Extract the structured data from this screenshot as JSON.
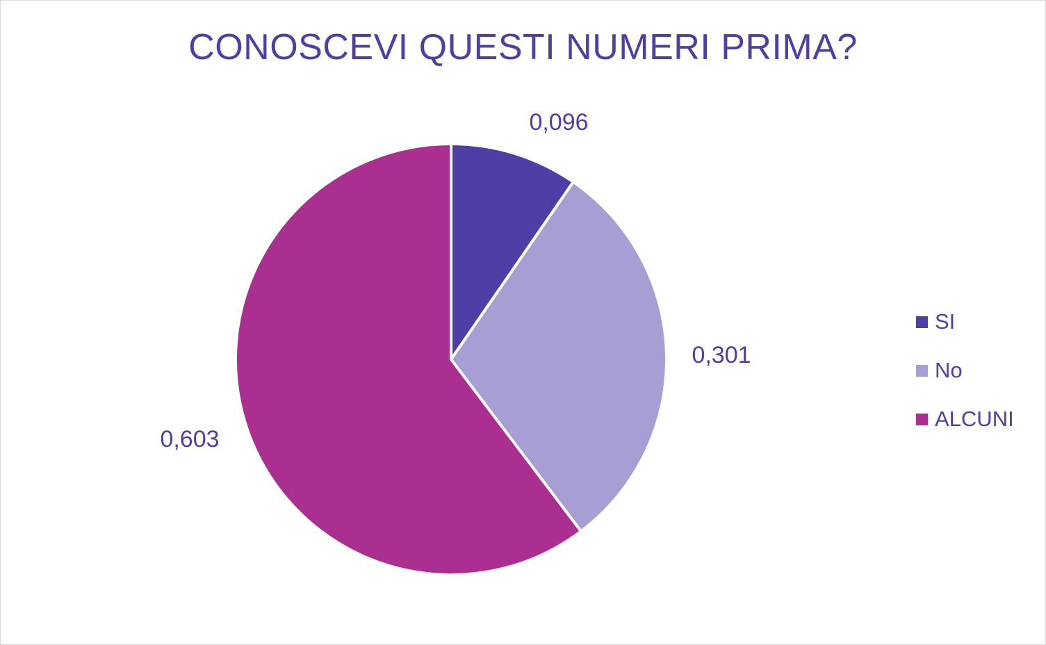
{
  "chart_data": {
    "type": "pie",
    "title": "CONOSCEVI QUESTI NUMERI PRIMA?",
    "categories": [
      "SI",
      "No",
      "ALCUNI"
    ],
    "values": [
      0.096,
      0.301,
      0.603
    ],
    "labels": [
      "0,096",
      "0,301",
      "0,603"
    ],
    "colors": [
      "#4f3ea5",
      "#a79fd3",
      "#aa2f91"
    ],
    "legend_position": "right"
  }
}
